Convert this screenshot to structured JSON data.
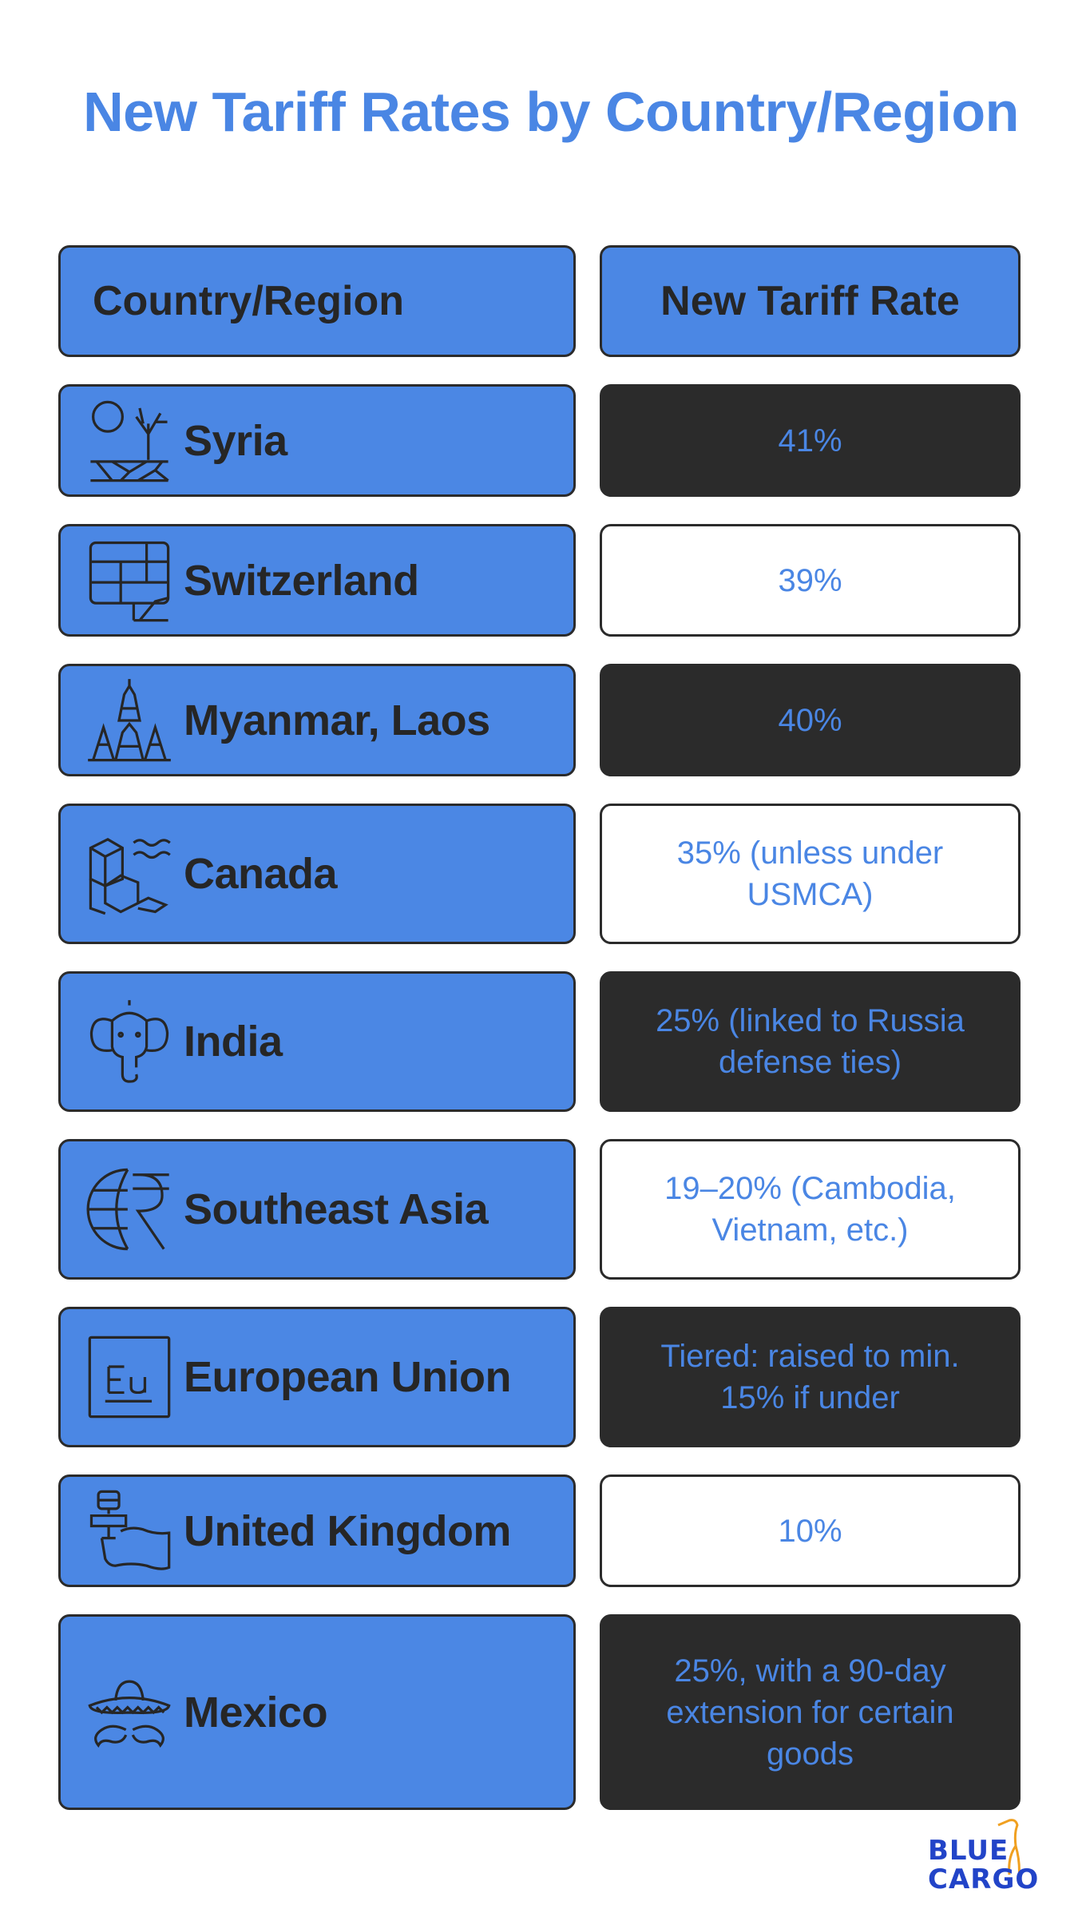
{
  "title": "New Tariff Rates by Country/Region",
  "table": {
    "header": {
      "country": "Country/Region",
      "rate": "New Tariff Rate"
    },
    "rows": [
      {
        "country": "Syria",
        "rate": "41%",
        "icon": "syria-landscape-icon"
      },
      {
        "country": "Switzerland",
        "rate": "39%",
        "icon": "switzerland-chalet-icon"
      },
      {
        "country": "Myanmar, Laos",
        "rate": "40%",
        "icon": "myanmar-laos-pagoda-icon"
      },
      {
        "country": "Canada",
        "rate": "35% (unless under USMCA)",
        "icon": "canada-iceberg-icon"
      },
      {
        "country": "India",
        "rate": "25% (linked to Russia defense ties)",
        "icon": "india-elephant-icon"
      },
      {
        "country": "Southeast Asia",
        "rate": "19–20% (Cambodia, Vietnam, etc.)",
        "icon": "southeast-asia-globe-currency-icon"
      },
      {
        "country": "European Union",
        "rate": "Tiered: raised to min. 15% if under",
        "icon": "eu-element-icon"
      },
      {
        "country": "United Kingdom",
        "rate": "10%",
        "icon": "united-kingdom-flag-hand-icon"
      },
      {
        "country": "Mexico",
        "rate": "25%, with a 90-day extension for certain goods",
        "icon": "mexico-sombrero-icon"
      }
    ]
  },
  "logo": {
    "line1": "BLUE",
    "line2": "CARGO",
    "icon": "heron-icon"
  },
  "colors": {
    "accent": "#4a86e4",
    "cell_blue": "#4b87e4",
    "dark": "#2b2b2b",
    "text_dark": "#262626",
    "logo_blue": "#2244c8",
    "logo_orange": "#f0a020"
  }
}
